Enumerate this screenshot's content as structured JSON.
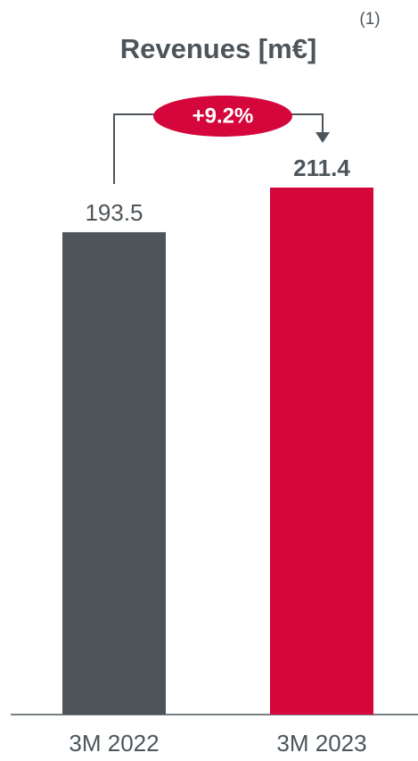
{
  "chart_data": {
    "type": "bar",
    "title": "Revenues [m€]",
    "title_note": "(1)",
    "categories": [
      "3M 2022",
      "3M 2023"
    ],
    "values": [
      193.5,
      211.4
    ],
    "colors": [
      "#4d555a",
      "#d4063c"
    ],
    "annotation": "+9.2%"
  }
}
